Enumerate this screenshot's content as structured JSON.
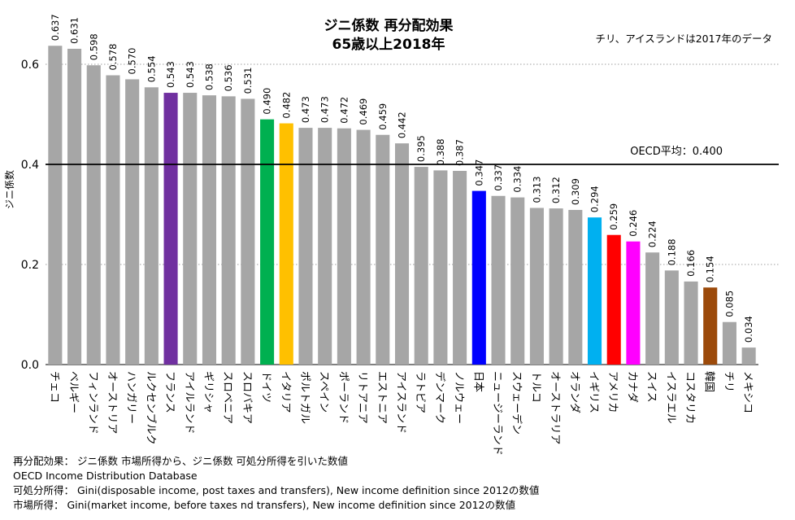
{
  "chart_data": {
    "type": "bar",
    "title": "ジニ係数 再分配効果",
    "subtitle": "65歳以上2018年",
    "note": "チリ、アイスランドは2017年のデータ",
    "ylabel": "ジニ係数",
    "ylim": [
      0,
      0.7
    ],
    "yticks": [
      "0.0",
      "0.2",
      "0.4",
      "0.6"
    ],
    "yticks_values": [
      0,
      0.2,
      0.4,
      0.6
    ],
    "grid": "dotted horizontal at 0.2 and 0.6",
    "reference_line": {
      "label": "OECD平均：0.400",
      "value": 0.4,
      "color": "#000000"
    },
    "default_color": "#a6a6a6",
    "categories": [
      "チェコ",
      "ベルギー",
      "フィンランド",
      "オーストリア",
      "ハンガリー",
      "ルクセンブルク",
      "フランス",
      "アイルランド",
      "ギリシャ",
      "スロベニア",
      "スロバキア",
      "ドイツ",
      "イタリア",
      "ポルトガル",
      "スペイン",
      "ポーランド",
      "リトアニア",
      "エストニア",
      "アイスランド",
      "ラトビア",
      "デンマーク",
      "ノルウェー",
      "日本",
      "ニュージーランド",
      "スウェーデン",
      "トルコ",
      "オーストラリア",
      "オランダ",
      "イギリス",
      "アメリカ",
      "カナダ",
      "スイス",
      "イスラエル",
      "コスタリカ",
      "韓国",
      "チリ",
      "メキシコ"
    ],
    "values": [
      0.637,
      0.631,
      0.598,
      0.578,
      0.57,
      0.554,
      0.543,
      0.543,
      0.538,
      0.536,
      0.531,
      0.49,
      0.482,
      0.473,
      0.473,
      0.472,
      0.469,
      0.459,
      0.442,
      0.395,
      0.388,
      0.387,
      0.347,
      0.337,
      0.334,
      0.313,
      0.312,
      0.309,
      0.294,
      0.259,
      0.246,
      0.224,
      0.188,
      0.166,
      0.154,
      0.085,
      0.034
    ],
    "value_labels": [
      "0.637",
      "0.631",
      "0.598",
      "0.578",
      "0.570",
      "0.554",
      "0.543",
      "0.543",
      "0.538",
      "0.536",
      "0.531",
      "0.490",
      "0.482",
      "0.473",
      "0.473",
      "0.472",
      "0.469",
      "0.459",
      "0.442",
      "0.395",
      "0.388",
      "0.387",
      "0.347",
      "0.337",
      "0.334",
      "0.313",
      "0.312",
      "0.309",
      "0.294",
      "0.259",
      "0.246",
      "0.224",
      "0.188",
      "0.166",
      "0.154",
      "0.085",
      "0.034"
    ],
    "highlight_colors": {
      "フランス": "#7030a0",
      "ドイツ": "#00b050",
      "イタリア": "#ffc000",
      "日本": "#0000ff",
      "イギリス": "#00b0f0",
      "アメリカ": "#ff0000",
      "カナダ": "#ff00ff",
      "韓国": "#9c4a0a"
    }
  },
  "footer": {
    "line1": "再分配効果： ジニ係数 市場所得から、ジニ係数 可処分所得を引いた数値",
    "line2": "OECD Income Distribution Database",
    "line3": "可処分所得： Gini(disposable income, post taxes and transfers), New income definition since 2012の数値",
    "line4": "市場所得： Gini(market income, before taxes nd transfers), New income definition since 2012の数値"
  }
}
